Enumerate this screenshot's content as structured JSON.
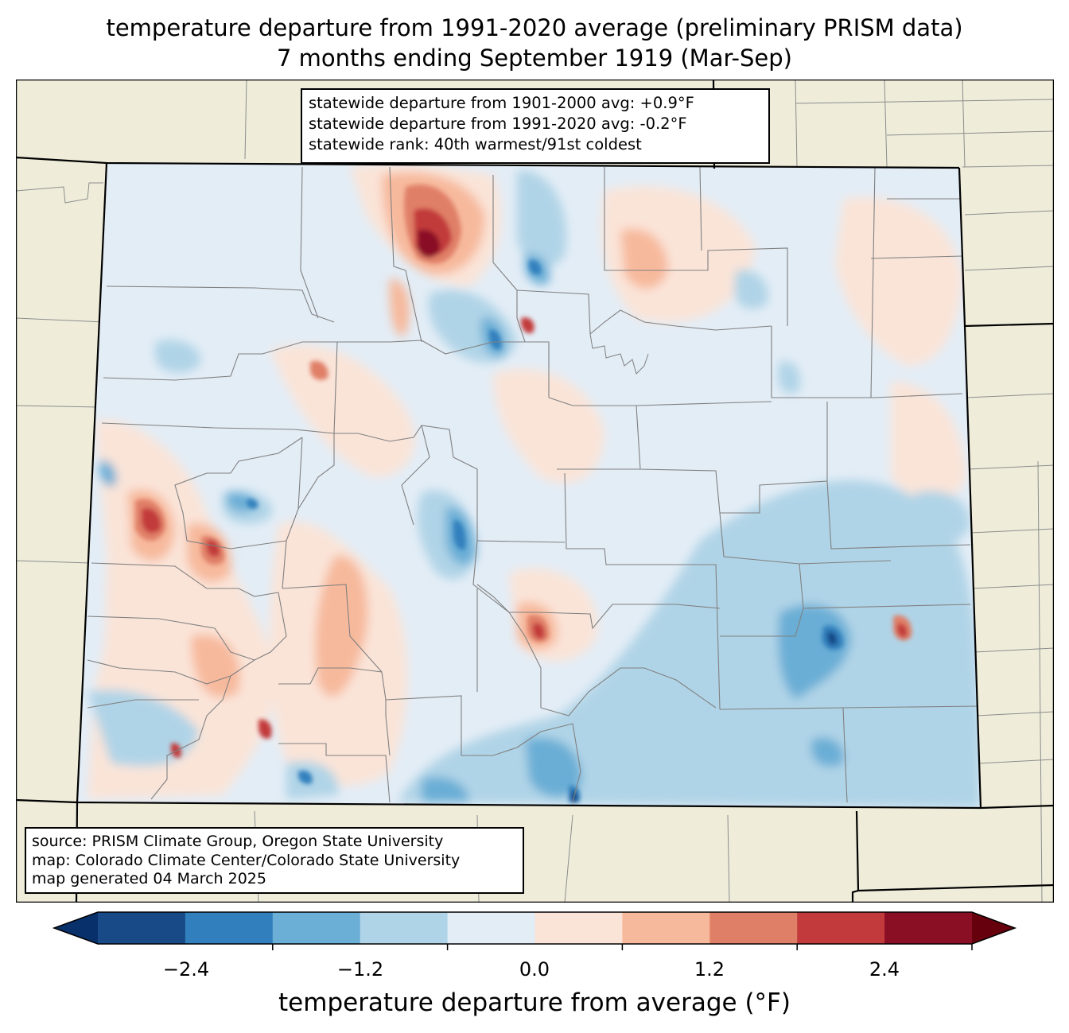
{
  "title_line1": "temperature departure from 1991-2020 average (preliminary PRISM data)",
  "title_line2": "7 months ending September 1919 (Mar-Sep)",
  "stats": {
    "line1": "statewide departure from 1901-2000 avg: +0.9°F",
    "line2": "statewide departure from 1991-2020 avg: -0.2°F",
    "line3": "statewide rank: 40th warmest/91st coldest"
  },
  "source": {
    "line1": "source: PRISM Climate Group, Oregon State University",
    "line2": "map: Colorado Climate Center/Colorado State University",
    "line3": "map generated 04 March 2025"
  },
  "colorbar": {
    "label": "temperature departure from average (°F)",
    "ticks": [
      "−2.4",
      "−1.2",
      "0.0",
      "1.2",
      "2.4"
    ],
    "colors": [
      "#08306b",
      "#174a87",
      "#3180bd",
      "#6baed6",
      "#b0d4e7",
      "#e3edf6",
      "#fae4d8",
      "#f7b99c",
      "#e07f67",
      "#c23a3b",
      "#8a0f25",
      "#67000d"
    ]
  },
  "map_colors": {
    "land": "#efedda",
    "base": "#e3edf6"
  }
}
